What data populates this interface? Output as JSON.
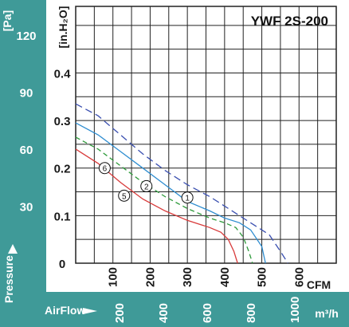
{
  "colors": {
    "teal": "#3f9a98",
    "grid": "#222222",
    "background": "#ffffff"
  },
  "chart_data": {
    "type": "line",
    "title": "YWF 2S-200",
    "y_left": {
      "label": "[Pa]",
      "ticks": [
        "120",
        "90",
        "60",
        "30"
      ],
      "tick_values": [
        120,
        90,
        60,
        30
      ],
      "range": [
        0,
        135
      ]
    },
    "y_right": {
      "label": "[in.H₂O]",
      "ticks": [
        "0.4",
        "0.3",
        "0.2",
        "0.1",
        "0"
      ],
      "tick_values": [
        0.4,
        0.3,
        0.2,
        0.1,
        0
      ],
      "range": [
        0,
        0.54
      ]
    },
    "y_axis_title": "Pressure",
    "x_cfm": {
      "label": "CFM",
      "ticks": [
        "100",
        "200",
        "300",
        "400",
        "500",
        "600"
      ],
      "tick_values": [
        100,
        200,
        300,
        400,
        500,
        600
      ],
      "range": [
        0,
        700
      ]
    },
    "x_m3h": {
      "title": "AirFlow",
      "label": "m³/h",
      "ticks": [
        "200",
        "400",
        "600",
        "800",
        "1000"
      ],
      "tick_values": [
        200,
        400,
        600,
        800,
        1000
      ]
    },
    "grid": true,
    "curve_labels": [
      "①",
      "②",
      "⑤",
      "⑥"
    ],
    "series": [
      {
        "marker": "⑥",
        "color": "#3a4fb0",
        "dash": "9,5",
        "x": [
          0,
          60,
          120,
          180,
          240,
          300,
          360,
          400,
          440,
          480,
          520,
          550,
          570
        ],
        "y": [
          0.335,
          0.31,
          0.27,
          0.23,
          0.195,
          0.165,
          0.14,
          0.12,
          0.1,
          0.08,
          0.06,
          0.025,
          0
        ]
      },
      {
        "marker": "②",
        "color": "#2e8dd0",
        "dash": "",
        "x": [
          0,
          60,
          120,
          180,
          240,
          300,
          360,
          400,
          440,
          470,
          500,
          510
        ],
        "y": [
          0.295,
          0.27,
          0.235,
          0.2,
          0.165,
          0.13,
          0.11,
          0.095,
          0.085,
          0.07,
          0.035,
          0
        ]
      },
      {
        "marker": "①",
        "color": "#2d9a3a",
        "dash": "6,4",
        "x": [
          0,
          60,
          120,
          180,
          240,
          300,
          360,
          400,
          430,
          450,
          465,
          475
        ],
        "y": [
          0.265,
          0.24,
          0.205,
          0.17,
          0.14,
          0.115,
          0.095,
          0.085,
          0.075,
          0.055,
          0.025,
          0
        ]
      },
      {
        "marker": "⑤",
        "color": "#d83a3a",
        "dash": "",
        "x": [
          0,
          60,
          120,
          180,
          240,
          300,
          360,
          390,
          410,
          425,
          435
        ],
        "y": [
          0.24,
          0.21,
          0.17,
          0.135,
          0.11,
          0.09,
          0.075,
          0.065,
          0.05,
          0.025,
          0
        ]
      }
    ]
  }
}
